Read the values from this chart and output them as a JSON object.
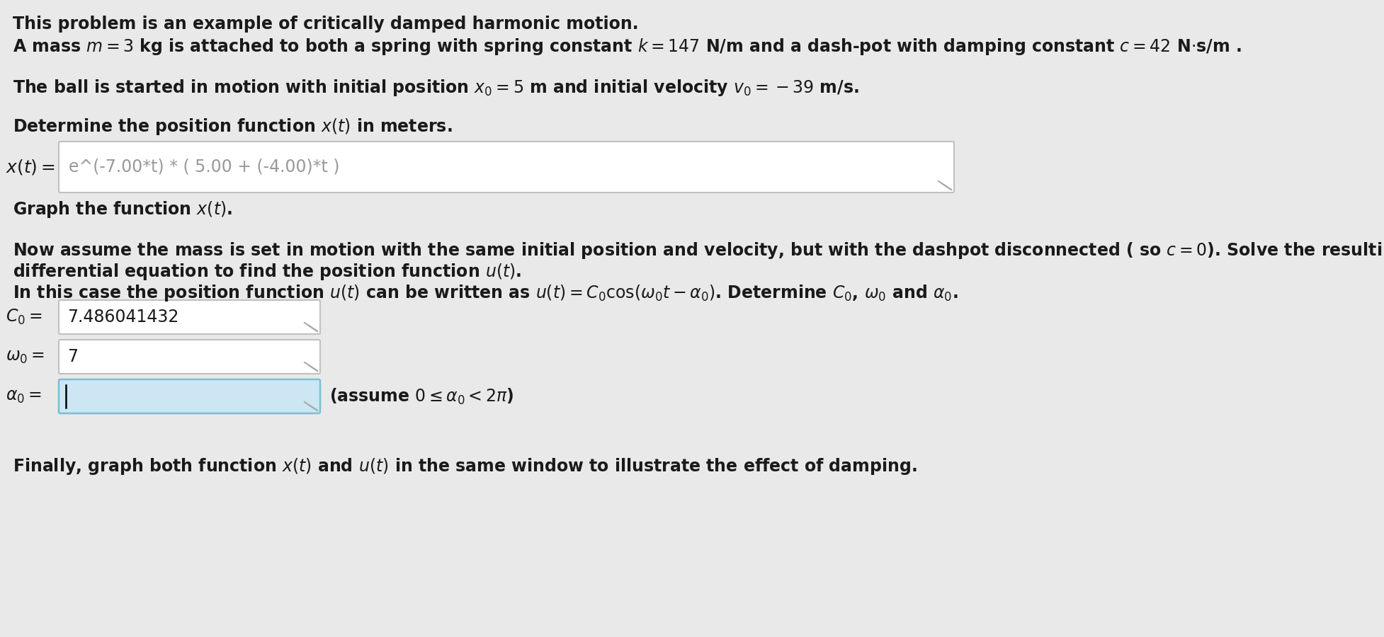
{
  "bg_color": "#e9e9e9",
  "white": "#ffffff",
  "light_blue": "#cce6f4",
  "text_color": "#1a1a1a",
  "box_text_color": "#999999",
  "font_size_main": 17,
  "font_size_box": 17,
  "line1": "This problem is an example of critically damped harmonic motion.",
  "line2a": "A mass ",
  "line2b": " = 3 kg is attached to both a spring with spring constant ",
  "line2c": " = 147 N/m and a dash-pot with damping constant ",
  "line2d": " = 42 N",
  "line2e": "s/m .",
  "line3_str": "The ball is started in motion with initial position x_0 = 5 m and initial velocity v_0 = -39 m/s.",
  "line4_str": "Determine the position function x(t) in meters.",
  "xt_box_content": "e^(-7.00*t) * ( 5.00 + (-4.00)*t )",
  "graph_str": "Graph the function x(t).",
  "now1": "Now assume the mass is set in motion with the same initial position and velocity, but with the dashpot disconnected ( so c = 0). Solve the resulting",
  "now2": "differential equation to find the position function u(t).",
  "now3": "In this case the position function u(t) can be written as u(t) = C_0 cos(w_0 t - a_0). Determine C_0, w_0 and a_0.",
  "C0_value": "7.486041432",
  "w0_value": "7",
  "finally_str": "Finally, graph both function x(t) and u(t) in the same window to illustrate the effect of damping.",
  "box_edge_color": "#c0c0c0",
  "blue_edge_color": "#7bbfd4",
  "resize_color": "#aaaaaa"
}
